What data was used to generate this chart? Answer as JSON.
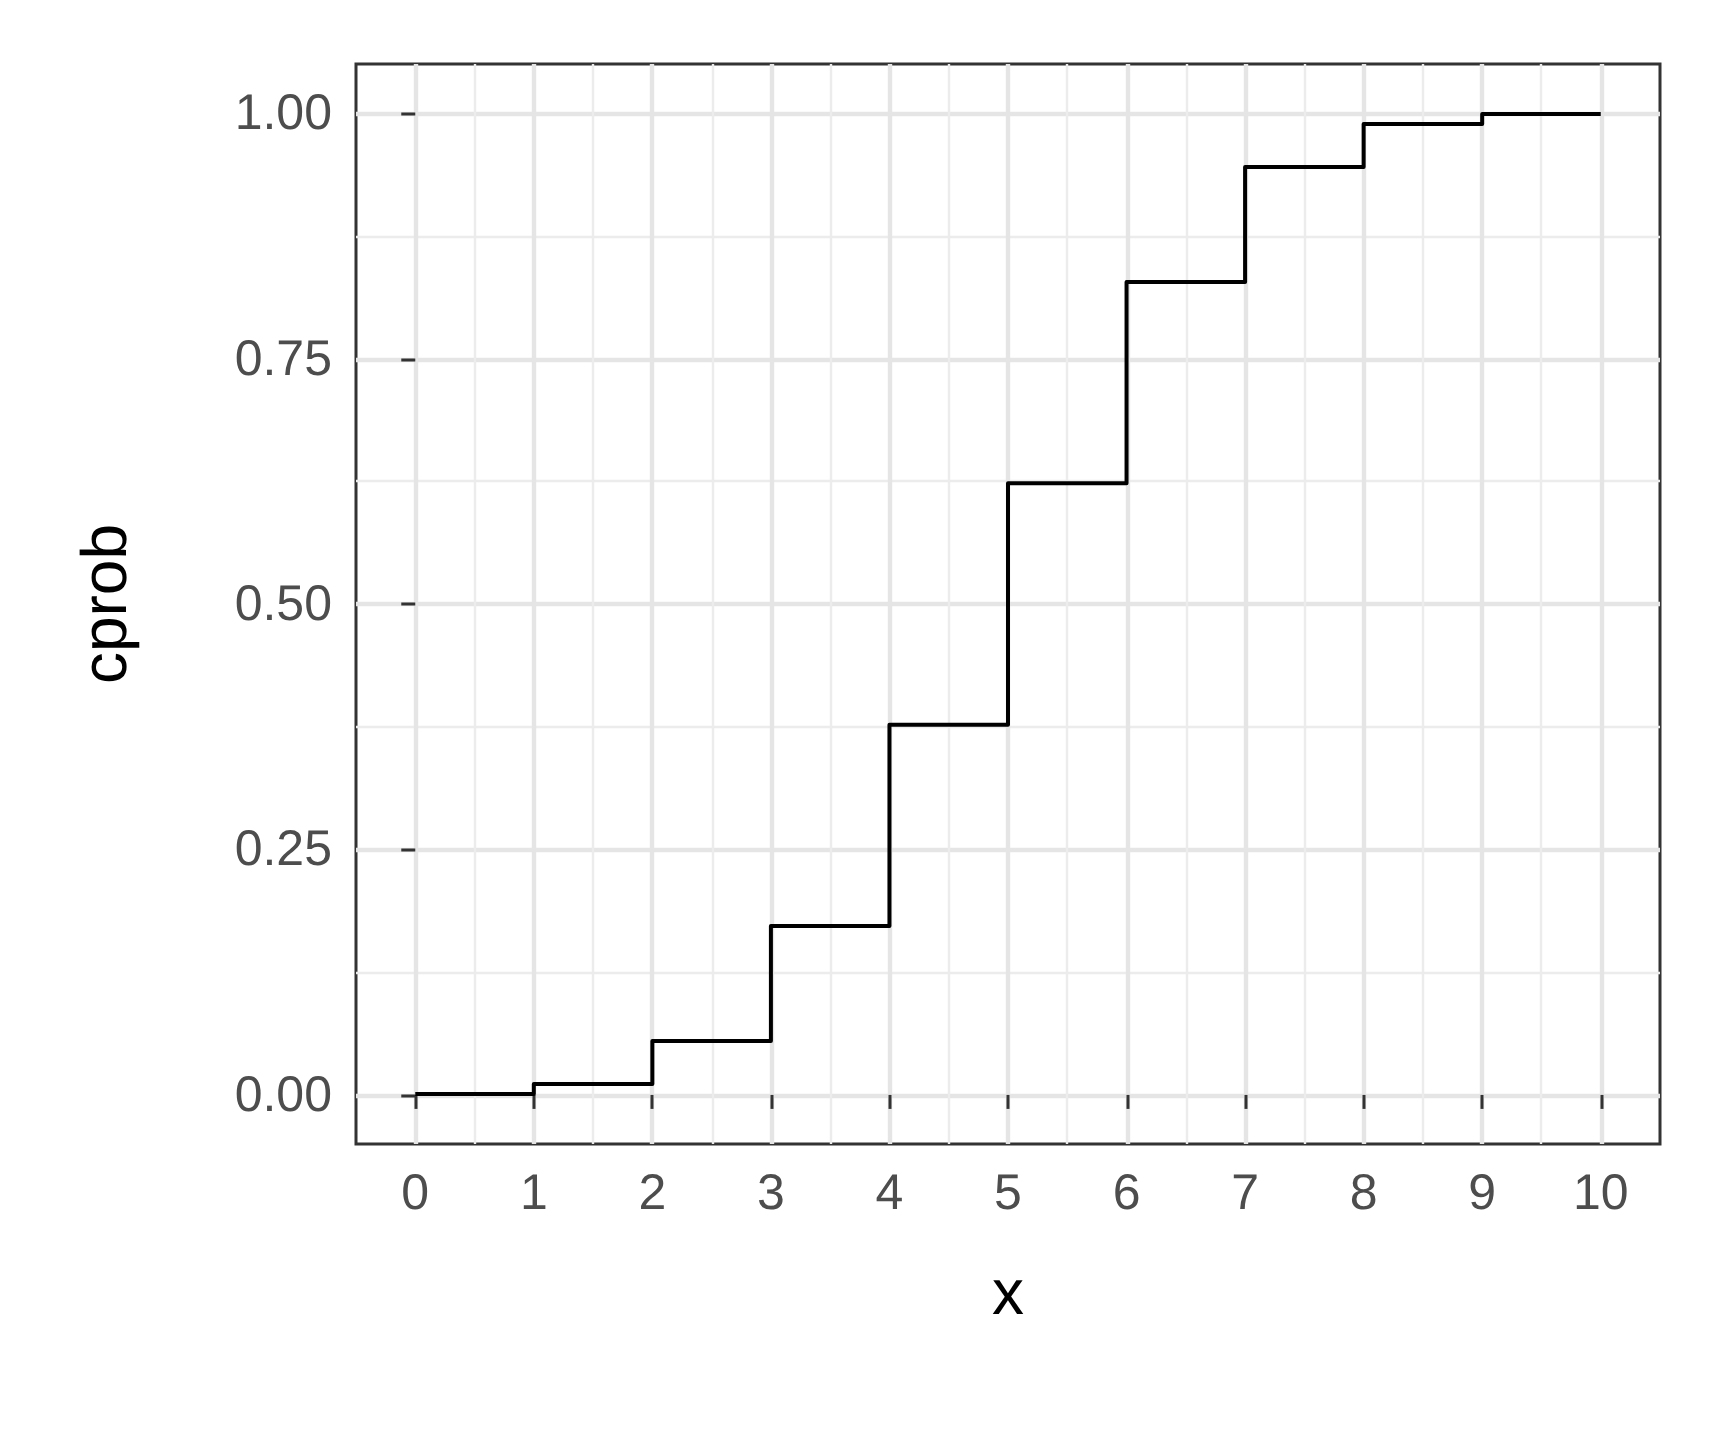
{
  "chart_data": {
    "type": "step",
    "xlabel": "x",
    "ylabel": "cprob",
    "x": [
      0,
      1,
      2,
      3,
      4,
      5,
      6,
      7,
      8,
      9,
      10
    ],
    "values": [
      0.001,
      0.011,
      0.055,
      0.172,
      0.377,
      0.623,
      0.828,
      0.945,
      0.989,
      0.999,
      1
    ],
    "color": "#000000",
    "xlim": [
      -0.5,
      10.5
    ],
    "xticks": [
      0,
      1,
      2,
      3,
      4,
      5,
      6,
      7,
      8,
      9,
      10
    ],
    "ylim": [
      -0.05,
      1.05
    ],
    "yticks": [
      {
        "value": 0,
        "label": "0.00"
      },
      {
        "value": 0.25,
        "label": "0.25"
      },
      {
        "value": 0.5,
        "label": "0.50"
      },
      {
        "value": 0.75,
        "label": "0.75"
      },
      {
        "value": 1,
        "label": "1.00"
      }
    ],
    "grid": true,
    "marker": "none",
    "line_style": "solid"
  }
}
